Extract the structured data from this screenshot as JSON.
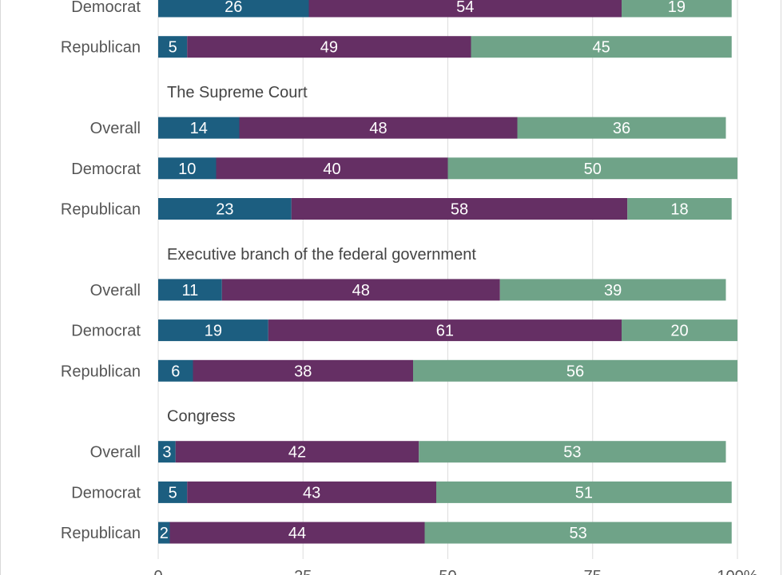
{
  "chart_data": {
    "type": "bar",
    "orientation": "horizontal",
    "stacked": true,
    "x_ticks": [
      "0",
      "25",
      "50",
      "75",
      "100%"
    ],
    "xlim": [
      0,
      100
    ],
    "grid": true,
    "segment_colors": [
      "#1c5e80",
      "#652f64",
      "#6fa388"
    ],
    "series": [
      {
        "index": 0,
        "color": "#1c5e80"
      },
      {
        "index": 1,
        "color": "#652f64"
      },
      {
        "index": 2,
        "color": "#6fa388"
      }
    ],
    "groups": [
      {
        "heading": "",
        "rows": [
          {
            "label": "Democrat",
            "values": [
              26,
              54,
              19
            ]
          },
          {
            "label": "Republican",
            "values": [
              5,
              49,
              45
            ]
          }
        ]
      },
      {
        "heading": "The Supreme Court",
        "rows": [
          {
            "label": "Overall",
            "values": [
              14,
              48,
              36
            ]
          },
          {
            "label": "Democrat",
            "values": [
              10,
              40,
              50
            ]
          },
          {
            "label": "Republican",
            "values": [
              23,
              58,
              18
            ]
          }
        ]
      },
      {
        "heading": "Executive branch of the federal government",
        "rows": [
          {
            "label": "Overall",
            "values": [
              11,
              48,
              39
            ]
          },
          {
            "label": "Democrat",
            "values": [
              19,
              61,
              20
            ]
          },
          {
            "label": "Republican",
            "values": [
              6,
              38,
              56
            ]
          }
        ]
      },
      {
        "heading": "Congress",
        "rows": [
          {
            "label": "Overall",
            "values": [
              3,
              42,
              53
            ]
          },
          {
            "label": "Democrat",
            "values": [
              5,
              43,
              51
            ]
          },
          {
            "label": "Republican",
            "values": [
              2,
              44,
              53
            ]
          }
        ]
      }
    ]
  }
}
